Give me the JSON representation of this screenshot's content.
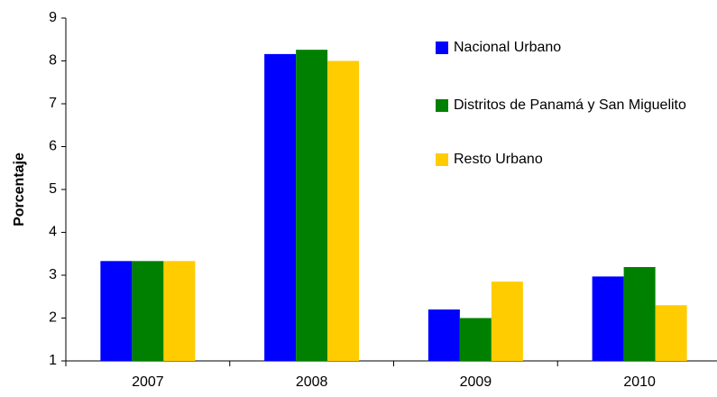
{
  "chart_data": {
    "type": "bar",
    "y_label": "Porcentaje",
    "categories": [
      "2007",
      "2008",
      "2009",
      "2010"
    ],
    "series": [
      {
        "name": "Nacional Urbano",
        "color": "#0000ff",
        "values": [
          3.33,
          8.16,
          2.2,
          2.97
        ]
      },
      {
        "name": "Distritos de Panamá y San Miguelito",
        "color": "#008000",
        "values": [
          3.33,
          8.26,
          2.0,
          3.19
        ]
      },
      {
        "name": "Resto Urbano",
        "color": "#ffcc00",
        "values": [
          3.33,
          8.0,
          2.85,
          2.3
        ]
      }
    ],
    "ylim": [
      1,
      9
    ],
    "yticks": [
      1,
      2,
      3,
      4,
      5,
      6,
      7,
      8,
      9
    ]
  }
}
